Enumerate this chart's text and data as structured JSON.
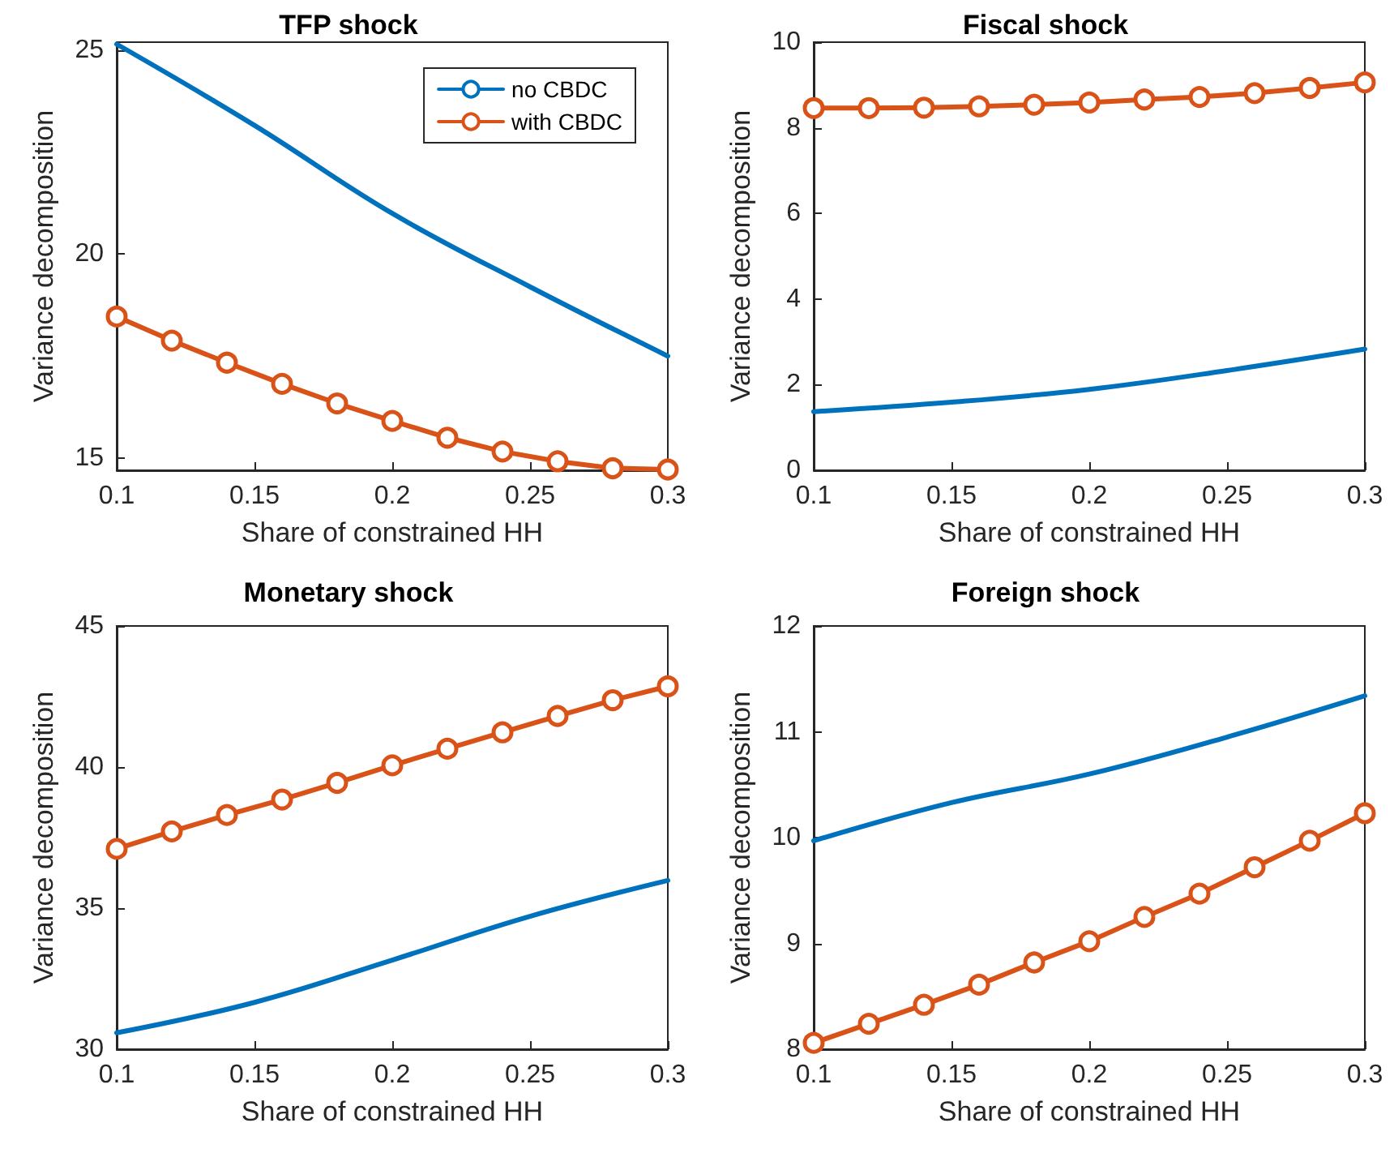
{
  "chart_data": [
    {
      "type": "line",
      "title": "TFP shock",
      "xlabel": "Share of constrained HH",
      "ylabel": "Variance decomposition",
      "xlim": [
        0.1,
        0.3
      ],
      "xticks": [
        0.1,
        0.15,
        0.2,
        0.25,
        0.3
      ],
      "ylim": [
        14.7,
        25.2
      ],
      "yticks": [
        15,
        20,
        25
      ],
      "grid": false,
      "legend": "top right",
      "series": [
        {
          "name": "no CBDC",
          "color": "#0072bd",
          "marker": "none",
          "x": [
            0.1,
            0.15,
            0.2,
            0.25,
            0.3
          ],
          "values": [
            25.15,
            23.16,
            21.0,
            19.2,
            17.5
          ]
        },
        {
          "name": "with CBDC",
          "color": "#d95319",
          "marker": "circle",
          "x": [
            0.1,
            0.12,
            0.14,
            0.16,
            0.18,
            0.2,
            0.22,
            0.24,
            0.26,
            0.28,
            0.3
          ],
          "values": [
            18.47,
            17.88,
            17.34,
            16.82,
            16.34,
            15.91,
            15.5,
            15.16,
            14.92,
            14.75,
            14.72
          ]
        }
      ]
    },
    {
      "type": "line",
      "title": "Fiscal shock",
      "xlabel": "Share of constrained HH",
      "ylabel": "Variance decomposition",
      "xlim": [
        0.1,
        0.3
      ],
      "xticks": [
        0.1,
        0.15,
        0.2,
        0.25,
        0.3
      ],
      "ylim": [
        0,
        10
      ],
      "yticks": [
        0,
        2,
        4,
        6,
        8,
        10
      ],
      "grid": false,
      "legend": false,
      "series": [
        {
          "color": "#0072bd",
          "marker": "none",
          "x": [
            0.1,
            0.15,
            0.2,
            0.25,
            0.3
          ],
          "values": [
            1.37,
            1.59,
            1.89,
            2.33,
            2.83
          ]
        },
        {
          "color": "#d95319",
          "marker": "circle",
          "x": [
            0.1,
            0.12,
            0.14,
            0.16,
            0.18,
            0.2,
            0.22,
            0.24,
            0.26,
            0.28,
            0.3
          ],
          "values": [
            8.46,
            8.46,
            8.47,
            8.5,
            8.54,
            8.59,
            8.66,
            8.72,
            8.81,
            8.93,
            9.06
          ]
        }
      ]
    },
    {
      "type": "line",
      "title": "Monetary shock",
      "xlabel": "Share of constrained HH",
      "ylabel": "Variance decomposition",
      "xlim": [
        0.1,
        0.3
      ],
      "xticks": [
        0.1,
        0.15,
        0.2,
        0.25,
        0.3
      ],
      "ylim": [
        30,
        45
      ],
      "yticks": [
        30,
        35,
        40,
        45
      ],
      "grid": false,
      "legend": false,
      "series": [
        {
          "color": "#0072bd",
          "marker": "none",
          "x": [
            0.1,
            0.15,
            0.2,
            0.25,
            0.3
          ],
          "values": [
            30.58,
            31.66,
            33.16,
            34.71,
            35.98
          ]
        },
        {
          "color": "#d95319",
          "marker": "circle",
          "x": [
            0.1,
            0.12,
            0.14,
            0.16,
            0.18,
            0.2,
            0.22,
            0.24,
            0.26,
            0.28,
            0.3
          ],
          "values": [
            37.1,
            37.72,
            38.3,
            38.85,
            39.44,
            40.06,
            40.65,
            41.23,
            41.81,
            42.37,
            42.86
          ]
        }
      ]
    },
    {
      "type": "line",
      "title": "Foreign shock",
      "xlabel": "Share of constrained HH",
      "ylabel": "Variance decomposition",
      "xlim": [
        0.1,
        0.3
      ],
      "xticks": [
        0.1,
        0.15,
        0.2,
        0.25,
        0.3
      ],
      "ylim": [
        8,
        12
      ],
      "yticks": [
        8,
        9,
        10,
        11,
        12
      ],
      "grid": false,
      "legend": false,
      "series": [
        {
          "color": "#0072bd",
          "marker": "none",
          "x": [
            0.1,
            0.15,
            0.2,
            0.25,
            0.3
          ],
          "values": [
            9.97,
            10.33,
            10.6,
            10.95,
            11.34
          ]
        },
        {
          "color": "#d95319",
          "marker": "circle",
          "x": [
            0.1,
            0.12,
            0.14,
            0.16,
            0.18,
            0.2,
            0.22,
            0.24,
            0.26,
            0.28,
            0.3
          ],
          "values": [
            8.06,
            8.24,
            8.42,
            8.61,
            8.82,
            9.02,
            9.25,
            9.47,
            9.72,
            9.97,
            10.23
          ]
        }
      ]
    }
  ]
}
